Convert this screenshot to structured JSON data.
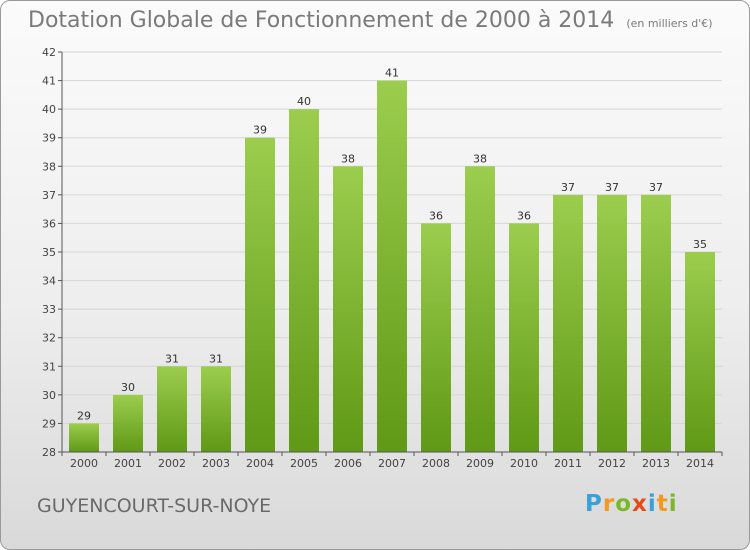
{
  "title": "Dotation Globale de Fonctionnement de 2000 à 2014",
  "unit": "(en milliers d'€)",
  "commune": "GUYENCOURT-SUR-NOYE",
  "logo": {
    "letters": [
      "P",
      "r",
      "o",
      "x",
      "i",
      "t",
      "i"
    ],
    "colors": [
      "#3aa0d8",
      "#f39a1e",
      "#7ab829",
      "#e64a19",
      "#3aa0d8",
      "#f39a1e",
      "#7ab829"
    ]
  },
  "colors": {
    "bar_top": "#9ccd4e",
    "bar_bottom": "#5f9916",
    "grid": "#d6d6d6",
    "axis": "#555555"
  },
  "chart_data": {
    "type": "bar",
    "title": "Dotation Globale de Fonctionnement de 2000 à 2014",
    "categories": [
      "2000",
      "2001",
      "2002",
      "2003",
      "2004",
      "2005",
      "2006",
      "2007",
      "2008",
      "2009",
      "2010",
      "2011",
      "2012",
      "2013",
      "2014"
    ],
    "values": [
      29,
      30,
      31,
      31,
      39,
      40,
      38,
      41,
      36,
      38,
      36,
      37,
      37,
      37,
      35
    ],
    "ylim": [
      28,
      42
    ],
    "yticks": [
      28,
      29,
      30,
      31,
      32,
      33,
      34,
      35,
      36,
      37,
      38,
      39,
      40,
      41,
      42
    ],
    "grid": true,
    "xlabel": "",
    "ylabel": ""
  }
}
